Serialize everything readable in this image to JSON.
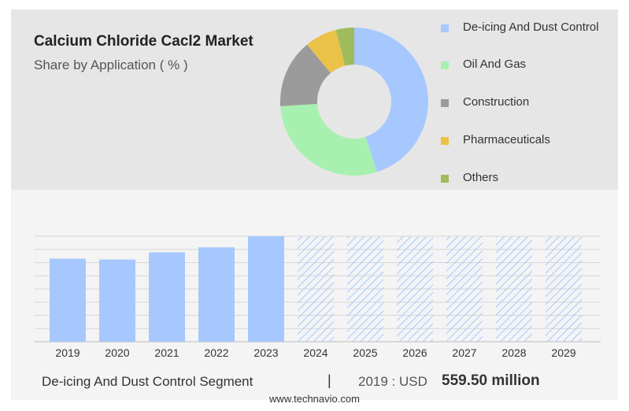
{
  "header": {
    "title": "Calcium Chloride Cacl2 Market",
    "subtitle": "Share by Application ( % )"
  },
  "footer": {
    "segment": "De-icing And Dust Control Segment",
    "separator": "|",
    "year_label": "2019 : USD",
    "value": "559.50 million",
    "source": "www.technavio.com"
  },
  "chart_data": [
    {
      "type": "pie",
      "variant": "donut",
      "title": "",
      "legend_position": "right",
      "series": [
        {
          "name": "De-icing And Dust Control",
          "value": 45,
          "color": "#a6c8ff"
        },
        {
          "name": "Oil And Gas",
          "value": 29,
          "color": "#a8f0b0"
        },
        {
          "name": "Construction",
          "value": 15,
          "color": "#9b9b9b"
        },
        {
          "name": "Pharmaceuticals",
          "value": 7,
          "color": "#ebc248"
        },
        {
          "name": "Others",
          "value": 4,
          "color": "#9fbc5c"
        }
      ]
    },
    {
      "type": "bar",
      "title": "",
      "xlabel": "",
      "ylabel": "",
      "grid": true,
      "categories": [
        "2019",
        "2020",
        "2021",
        "2022",
        "2023",
        "2024",
        "2025",
        "2026",
        "2027",
        "2028",
        "2029"
      ],
      "values": [
        559.5,
        554,
        602,
        636,
        711,
        null,
        null,
        null,
        null,
        null,
        null
      ],
      "forecast_from": "2024",
      "ylim": [
        0,
        711
      ],
      "bar_color": "#a6c8ff",
      "forecast_color": "#a6c8ff"
    }
  ]
}
